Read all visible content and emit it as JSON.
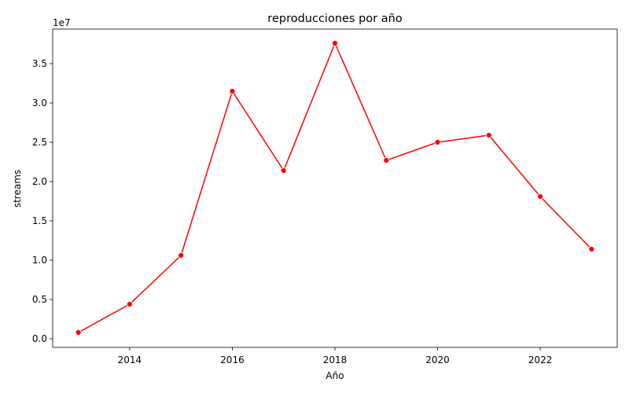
{
  "chart_data": {
    "type": "line",
    "title": "reproducciones por año",
    "xlabel": "Año",
    "ylabel": "streams",
    "y_offset_label": "1e7",
    "x": [
      2013,
      2014,
      2015,
      2016,
      2017,
      2018,
      2019,
      2020,
      2021,
      2022,
      2023
    ],
    "series": [
      {
        "values": [
          800000,
          4400000,
          10600000,
          31500000,
          21400000,
          37600000,
          22700000,
          25000000,
          25900000,
          18100000,
          11400000
        ],
        "color": "#ff0000",
        "marker": "circle"
      }
    ],
    "xlim": [
      2012.5,
      2023.5
    ],
    "ylim": [
      -1100000,
      39400000
    ],
    "xticks": [
      2014,
      2016,
      2018,
      2020,
      2022
    ],
    "xtick_labels": [
      "2014",
      "2016",
      "2018",
      "2020",
      "2022"
    ],
    "yticks": [
      0,
      5000000,
      10000000,
      15000000,
      20000000,
      25000000,
      30000000,
      35000000
    ],
    "ytick_labels": [
      "0.0",
      "0.5",
      "1.0",
      "1.5",
      "2.0",
      "2.5",
      "3.0",
      "3.5"
    ],
    "grid": false,
    "legend": "none"
  }
}
